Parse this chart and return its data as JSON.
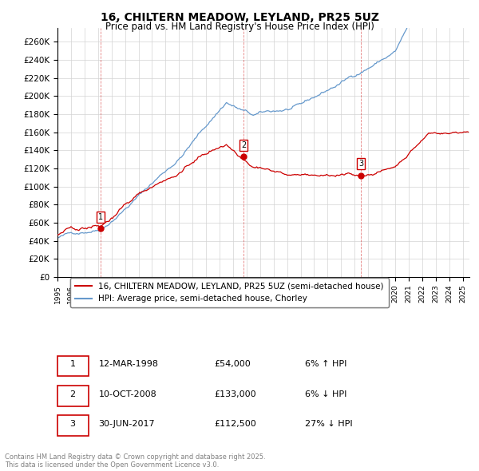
{
  "title_line1": "16, CHILTERN MEADOW, LEYLAND, PR25 5UZ",
  "title_line2": "Price paid vs. HM Land Registry's House Price Index (HPI)",
  "ylabel": "",
  "xlim_start": 1995.0,
  "xlim_end": 2025.5,
  "ylim_min": 0,
  "ylim_max": 275000,
  "yticks": [
    0,
    20000,
    40000,
    60000,
    80000,
    100000,
    120000,
    140000,
    160000,
    180000,
    200000,
    220000,
    240000,
    260000
  ],
  "ytick_labels": [
    "£0",
    "£20K",
    "£40K",
    "£60K",
    "£80K",
    "£100K",
    "£120K",
    "£140K",
    "£160K",
    "£180K",
    "£200K",
    "£220K",
    "£240K",
    "£260K"
  ],
  "property_color": "#cc0000",
  "hpi_color": "#6699cc",
  "sale_marker_color": "#cc0000",
  "sales": [
    {
      "date_x": 1998.19,
      "price": 54000,
      "label": "1"
    },
    {
      "date_x": 2008.78,
      "price": 133000,
      "label": "2"
    },
    {
      "date_x": 2017.49,
      "price": 112500,
      "label": "3"
    }
  ],
  "legend_entries": [
    "16, CHILTERN MEADOW, LEYLAND, PR25 5UZ (semi-detached house)",
    "HPI: Average price, semi-detached house, Chorley"
  ],
  "table_rows": [
    {
      "num": "1",
      "date": "12-MAR-1998",
      "price": "£54,000",
      "hpi_note": "6% ↑ HPI"
    },
    {
      "num": "2",
      "date": "10-OCT-2008",
      "price": "£133,000",
      "hpi_note": "6% ↓ HPI"
    },
    {
      "num": "3",
      "date": "30-JUN-2017",
      "price": "£112,500",
      "hpi_note": "27% ↓ HPI"
    }
  ],
  "footnote": "Contains HM Land Registry data © Crown copyright and database right 2025.\nThis data is licensed under the Open Government Licence v3.0."
}
